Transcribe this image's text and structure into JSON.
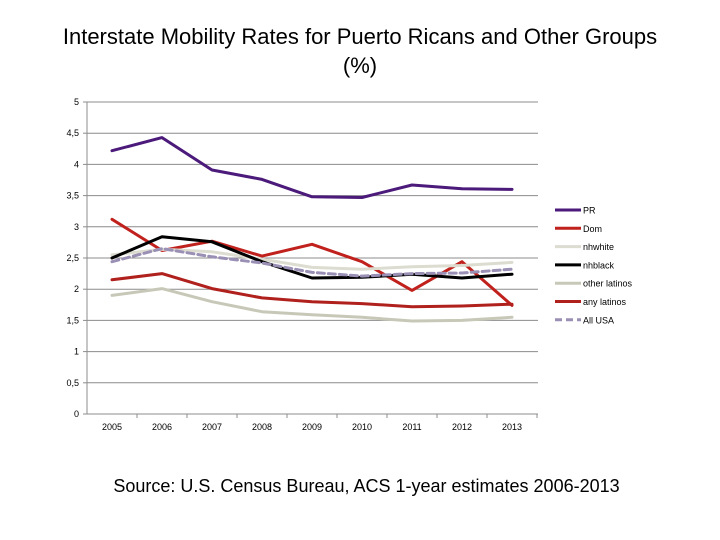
{
  "title_line1": "Interstate Mobility Rates for Puerto Ricans and Other Groups",
  "title_line2": "(%)",
  "source": "Source: U.S. Census Bureau, ACS 1-year estimates 2006-2013",
  "chart_data": {
    "type": "line",
    "title": "Interstate Mobility Rates for Puerto Ricans and Other Groups (%)",
    "xlabel": "",
    "ylabel": "",
    "categories": [
      "2005",
      "2006",
      "2007",
      "2008",
      "2009",
      "2010",
      "2011",
      "2012",
      "2013"
    ],
    "y_ticks": [
      "0",
      "0.5",
      "1",
      "1.5",
      "2",
      "2.5",
      "3",
      "3.5",
      "4",
      "4.5",
      "5"
    ],
    "ylim": [
      0,
      5
    ],
    "grid": "horizontal",
    "legend_position": "right",
    "series": [
      {
        "name": "PR",
        "color": "#4b1a7a",
        "dashed": false,
        "values": [
          4.22,
          4.43,
          3.91,
          3.76,
          3.48,
          3.47,
          3.67,
          3.61,
          3.6
        ]
      },
      {
        "name": "Dom",
        "color": "#c0211c",
        "dashed": false,
        "values": [
          3.12,
          2.62,
          2.77,
          2.53,
          2.72,
          2.44,
          1.98,
          2.44,
          1.74
        ]
      },
      {
        "name": "nhwhite",
        "color": "#dcdcd0",
        "dashed": false,
        "values": [
          2.55,
          2.64,
          2.6,
          2.48,
          2.35,
          2.32,
          2.36,
          2.38,
          2.43
        ]
      },
      {
        "name": "nhblack",
        "color": "#000000",
        "dashed": false,
        "values": [
          2.5,
          2.84,
          2.76,
          2.44,
          2.18,
          2.19,
          2.24,
          2.18,
          2.24
        ]
      },
      {
        "name": "other latinos",
        "color": "#c8c8b8",
        "dashed": false,
        "values": [
          1.9,
          2.01,
          1.8,
          1.64,
          1.59,
          1.55,
          1.49,
          1.5,
          1.55
        ]
      },
      {
        "name": "any latinos",
        "color": "#b0201c",
        "dashed": false,
        "values": [
          2.15,
          2.25,
          2.01,
          1.86,
          1.8,
          1.77,
          1.72,
          1.73,
          1.76
        ]
      },
      {
        "name": "All USA",
        "color": "#9a8fb4",
        "dashed": true,
        "values": [
          2.44,
          2.65,
          2.52,
          2.42,
          2.27,
          2.21,
          2.25,
          2.26,
          2.32
        ]
      }
    ]
  }
}
